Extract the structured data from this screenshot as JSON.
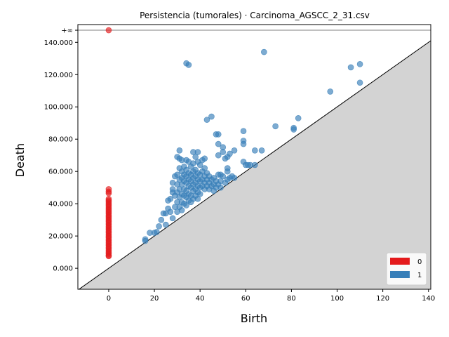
{
  "chart_data": {
    "type": "scatter",
    "title": "Persistencia (tumorales) · Carcinoma_AGSCC_2_31.csv",
    "xlabel": "Birth",
    "ylabel": "Death",
    "xlim": [
      -13.5,
      141
    ],
    "ylim": [
      -13000,
      151000
    ],
    "x_ticks": [
      0,
      20,
      40,
      60,
      80,
      100,
      120,
      140
    ],
    "x_tick_labels": [
      "0",
      "20",
      "40",
      "60",
      "80",
      "100",
      "120",
      "140"
    ],
    "y_ticks": [
      0,
      20000,
      40000,
      60000,
      80000,
      100000,
      120000,
      140000
    ],
    "y_tick_labels": [
      "0.000",
      "20.000",
      "40.000",
      "60.000",
      "80.000",
      "100.000",
      "120.000",
      "140.000"
    ],
    "infinity_value": 147500,
    "infinity_label": "+∞",
    "diagonal": true,
    "legend_position": "lower-right",
    "colors": {
      "dim0": "#e41a1c",
      "dim1": "#377eb8",
      "diag_fill": "#d3d3d3",
      "inf_line": "#808080"
    },
    "series": [
      {
        "name": "0",
        "color": "#e41a1c",
        "points": [
          [
            0,
            147500
          ],
          [
            0,
            49000
          ],
          [
            0,
            47500
          ],
          [
            0,
            46500
          ],
          [
            0,
            43000
          ],
          [
            0,
            42000
          ],
          [
            0,
            41000
          ],
          [
            0,
            40000
          ],
          [
            0,
            39000
          ],
          [
            0,
            38000
          ],
          [
            0,
            37000
          ],
          [
            0,
            36000
          ],
          [
            0,
            35000
          ],
          [
            0,
            34000
          ],
          [
            0,
            33000
          ],
          [
            0,
            32000
          ],
          [
            0,
            31000
          ],
          [
            0,
            30000
          ],
          [
            0,
            29000
          ],
          [
            0,
            28000
          ],
          [
            0,
            27000
          ],
          [
            0,
            26000
          ],
          [
            0,
            25000
          ],
          [
            0,
            24000
          ],
          [
            0,
            23000
          ],
          [
            0,
            22000
          ],
          [
            0,
            21000
          ],
          [
            0,
            20000
          ],
          [
            0,
            19000
          ],
          [
            0,
            18000
          ],
          [
            0,
            17000
          ],
          [
            0,
            16000
          ],
          [
            0,
            15000
          ],
          [
            0,
            14000
          ],
          [
            0,
            13000
          ],
          [
            0,
            12000
          ],
          [
            0,
            11000
          ],
          [
            0,
            10000
          ],
          [
            0,
            9000
          ],
          [
            0,
            8000
          ],
          [
            0,
            7500
          ]
        ]
      },
      {
        "name": "1",
        "color": "#377eb8",
        "points": [
          [
            16,
            18000
          ],
          [
            16,
            17000
          ],
          [
            18,
            22000
          ],
          [
            20,
            22000
          ],
          [
            21,
            22500
          ],
          [
            22,
            26000
          ],
          [
            23,
            30000
          ],
          [
            24,
            34000
          ],
          [
            25,
            27000
          ],
          [
            25,
            34000
          ],
          [
            26,
            37000
          ],
          [
            26,
            42000
          ],
          [
            27,
            43000
          ],
          [
            27,
            35000
          ],
          [
            28,
            47000
          ],
          [
            28,
            49000
          ],
          [
            28,
            53000
          ],
          [
            28,
            31000
          ],
          [
            29,
            57000
          ],
          [
            29,
            45000
          ],
          [
            29,
            38000
          ],
          [
            30,
            69000
          ],
          [
            30,
            58000
          ],
          [
            30,
            52000
          ],
          [
            30,
            47000
          ],
          [
            30,
            41000
          ],
          [
            30,
            35000
          ],
          [
            31,
            73000
          ],
          [
            31,
            68000
          ],
          [
            31,
            62000
          ],
          [
            31,
            55000
          ],
          [
            31,
            49000
          ],
          [
            31,
            44000
          ],
          [
            31,
            38000
          ],
          [
            32,
            67000
          ],
          [
            32,
            60000
          ],
          [
            32,
            56000
          ],
          [
            32,
            52000
          ],
          [
            32,
            46000
          ],
          [
            32,
            41000
          ],
          [
            32,
            36000
          ],
          [
            33,
            63000
          ],
          [
            33,
            58000
          ],
          [
            33,
            54000
          ],
          [
            33,
            49000
          ],
          [
            33,
            45000
          ],
          [
            33,
            40000
          ],
          [
            34,
            127000
          ],
          [
            34,
            67000
          ],
          [
            34,
            61000
          ],
          [
            34,
            57000
          ],
          [
            34,
            53000
          ],
          [
            34,
            48000
          ],
          [
            34,
            44000
          ],
          [
            34,
            39000
          ],
          [
            35,
            126000
          ],
          [
            35,
            66000
          ],
          [
            35,
            59000
          ],
          [
            35,
            55000
          ],
          [
            35,
            51000
          ],
          [
            35,
            46000
          ],
          [
            35,
            42000
          ],
          [
            36,
            63000
          ],
          [
            36,
            58000
          ],
          [
            36,
            54000
          ],
          [
            36,
            50000
          ],
          [
            36,
            45000
          ],
          [
            36,
            41000
          ],
          [
            37,
            72000
          ],
          [
            37,
            65000
          ],
          [
            37,
            60000
          ],
          [
            37,
            56000
          ],
          [
            37,
            52000
          ],
          [
            37,
            48000
          ],
          [
            37,
            43000
          ],
          [
            38,
            69000
          ],
          [
            38,
            61000
          ],
          [
            38,
            57000
          ],
          [
            38,
            53000
          ],
          [
            38,
            49000
          ],
          [
            38,
            45000
          ],
          [
            39,
            72000
          ],
          [
            39,
            66000
          ],
          [
            39,
            59000
          ],
          [
            39,
            55000
          ],
          [
            39,
            51000
          ],
          [
            39,
            47000
          ],
          [
            39,
            43000
          ],
          [
            40,
            64000
          ],
          [
            40,
            58000
          ],
          [
            40,
            54000
          ],
          [
            40,
            50000
          ],
          [
            40,
            46000
          ],
          [
            41,
            67000
          ],
          [
            41,
            60000
          ],
          [
            41,
            55000
          ],
          [
            41,
            51000
          ],
          [
            42,
            68000
          ],
          [
            42,
            62000
          ],
          [
            42,
            57000
          ],
          [
            42,
            53000
          ],
          [
            42,
            49000
          ],
          [
            43,
            92000
          ],
          [
            43,
            59000
          ],
          [
            43,
            55000
          ],
          [
            43,
            51000
          ],
          [
            44,
            57000
          ],
          [
            44,
            53000
          ],
          [
            44,
            49000
          ],
          [
            45,
            94000
          ],
          [
            45,
            55000
          ],
          [
            45,
            51000
          ],
          [
            46,
            56000
          ],
          [
            46,
            52000
          ],
          [
            46,
            48000
          ],
          [
            47,
            83000
          ],
          [
            47,
            54000
          ],
          [
            47,
            50000
          ],
          [
            48,
            83000
          ],
          [
            48,
            77000
          ],
          [
            48,
            70000
          ],
          [
            48,
            58000
          ],
          [
            48,
            52000
          ],
          [
            49,
            58000
          ],
          [
            49,
            54000
          ],
          [
            49,
            50000
          ],
          [
            50,
            75000
          ],
          [
            50,
            72000
          ],
          [
            50,
            57000
          ],
          [
            51,
            68000
          ],
          [
            51,
            53000
          ],
          [
            52,
            69000
          ],
          [
            52,
            62000
          ],
          [
            52,
            60000
          ],
          [
            52,
            55000
          ],
          [
            53,
            71000
          ],
          [
            53,
            56000
          ],
          [
            54,
            57000
          ],
          [
            55,
            73000
          ],
          [
            55,
            56000
          ],
          [
            59,
            85000
          ],
          [
            59,
            79000
          ],
          [
            59,
            77000
          ],
          [
            59,
            66000
          ],
          [
            60,
            64000
          ],
          [
            61,
            64000
          ],
          [
            62,
            64000
          ],
          [
            64,
            73000
          ],
          [
            64,
            64000
          ],
          [
            67,
            73000
          ],
          [
            68,
            134000
          ],
          [
            73,
            88000
          ],
          [
            81,
            87000
          ],
          [
            81,
            86000
          ],
          [
            83,
            93000
          ],
          [
            97,
            109500
          ],
          [
            106,
            124500
          ],
          [
            110,
            126500
          ],
          [
            110,
            115000
          ]
        ]
      }
    ]
  }
}
